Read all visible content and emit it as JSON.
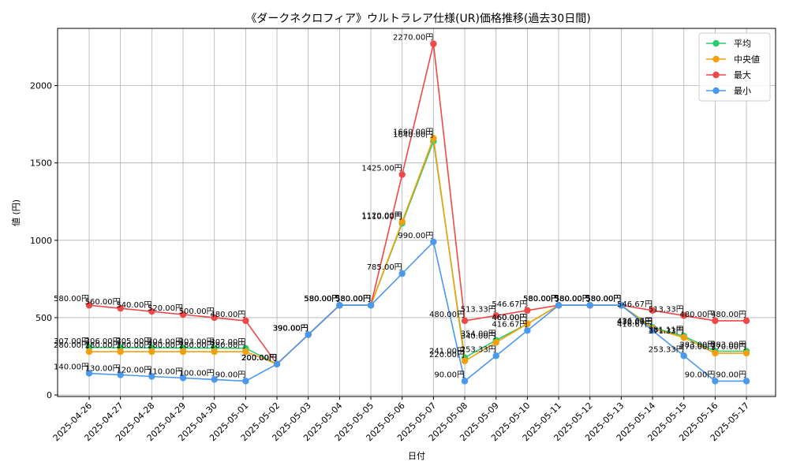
{
  "chart_data": {
    "type": "line",
    "title": "《ダークネクロフィア》ウルトラレア仕様(UR)価格推移(過去30日間)",
    "xlabel": "日付",
    "ylabel": "値 (円)",
    "ylim": [
      -10,
      2370
    ],
    "yticks": [
      0,
      500,
      1000,
      1500,
      2000
    ],
    "grid": true,
    "legend_position": "top-right",
    "value_suffix": "円",
    "categories": [
      "2025-04-26",
      "2025-04-27",
      "2025-04-28",
      "2025-04-29",
      "2025-04-30",
      "2025-05-01",
      "2025-05-02",
      "2025-05-03",
      "2025-05-04",
      "2025-05-05",
      "2025-05-06",
      "2025-05-07",
      "2025-05-08",
      "2025-05-09",
      "2025-05-10",
      "2025-05-11",
      "2025-05-12",
      "2025-05-13",
      "2025-05-14",
      "2025-05-15",
      "2025-05-16",
      "2025-05-17"
    ],
    "series": [
      {
        "name": "平均",
        "color": "#2ecc71",
        "values": [
          307.0,
          306.0,
          305.0,
          304.0,
          303.0,
          302.0,
          200.0,
          390.0,
          580.0,
          580.0,
          1110.0,
          1640.0,
          241.0,
          354.0,
          460.0,
          580.0,
          580.0,
          580.0,
          436.67,
          381.11,
          283.0,
          283.0
        ]
      },
      {
        "name": "中央値",
        "color": "#f5a00a",
        "values": [
          280.0,
          280.0,
          280.0,
          280.0,
          280.0,
          280.0,
          200.0,
          390.0,
          580.0,
          580.0,
          1120.0,
          1660.0,
          220.0,
          340.0,
          460.0,
          580.0,
          580.0,
          580.0,
          430.0,
          371.33,
          270.0,
          270.0
        ]
      },
      {
        "name": "最大",
        "color": "#f04848",
        "values": [
          580.0,
          560.0,
          540.0,
          520.0,
          500.0,
          480.0,
          200.0,
          390.0,
          580.0,
          580.0,
          1425.0,
          2270.0,
          480.0,
          513.33,
          546.67,
          580.0,
          580.0,
          580.0,
          546.67,
          513.33,
          480.0,
          480.0
        ]
      },
      {
        "name": "最小",
        "color": "#4a98f0",
        "values": [
          140.0,
          130.0,
          120.0,
          110.0,
          100.0,
          90.0,
          200.0,
          390.0,
          580.0,
          580.0,
          785.0,
          990.0,
          90.0,
          253.33,
          416.67,
          580.0,
          580.0,
          580.0,
          416.67,
          253.33,
          90.0,
          90.0
        ]
      }
    ]
  }
}
